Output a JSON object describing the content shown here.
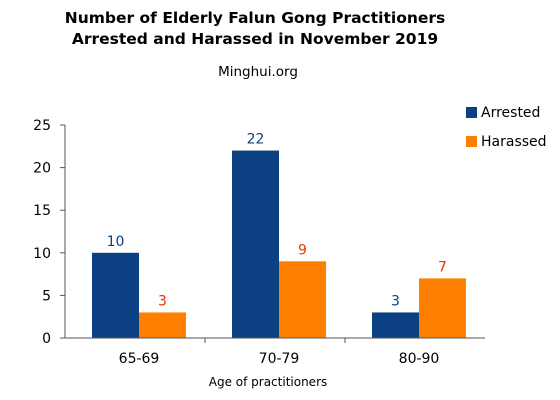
{
  "chart_data": {
    "type": "bar",
    "title": "Number of Elderly Falun Gong Practitioners",
    "title_line2": "Arrested and Harassed in November 2019",
    "subtitle": "Minghui.org",
    "xlabel": "Age of practitioners",
    "ylabel": "",
    "ylim": [
      0,
      25
    ],
    "yticks": [
      0,
      5,
      10,
      15,
      20,
      25
    ],
    "categories": [
      "65-69",
      "70-79",
      "80-90"
    ],
    "series": [
      {
        "name": "Arrested",
        "values": [
          10,
          22,
          3
        ],
        "color": "#0b4182",
        "label_color": "#0b4182"
      },
      {
        "name": "Harassed",
        "values": [
          3,
          9,
          7
        ],
        "color": "#ff8000",
        "label_color": "#ee3300"
      }
    ],
    "legend_position": "top-right",
    "grid": false
  }
}
